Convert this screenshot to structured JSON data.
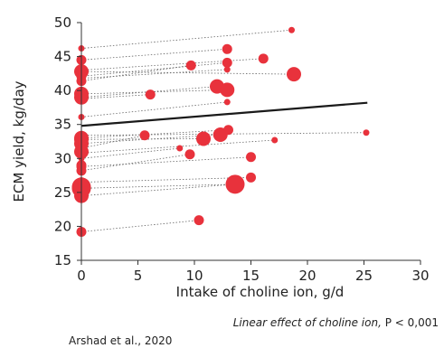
{
  "chart_data": {
    "type": "scatter",
    "xlabel": "Intake of choline ion, g/d",
    "ylabel": "ECM yield, kg/day",
    "xlim": [
      0,
      30
    ],
    "ylim": [
      15,
      50
    ],
    "xticks": [
      0,
      5,
      10,
      15,
      20,
      25,
      30
    ],
    "yticks": [
      15,
      20,
      25,
      30,
      35,
      40,
      45,
      50
    ],
    "grid": false,
    "colors": {
      "point": "#e8323c",
      "trend": "#1a1a1a",
      "connector": "#666666"
    },
    "trend_line": {
      "x": [
        0,
        25.3
      ],
      "y": [
        34.8,
        38.2
      ]
    },
    "pairs": [
      {
        "x0": 0,
        "y0": 46.2,
        "x1": 18.6,
        "y1": 48.9,
        "size": 1
      },
      {
        "x0": 0,
        "y0": 44.5,
        "x1": 12.9,
        "y1": 46.1,
        "size": 2
      },
      {
        "x0": 0,
        "y0": 43.0,
        "x1": 16.1,
        "y1": 44.7,
        "size": 2
      },
      {
        "x0": 0,
        "y0": 42.1,
        "x1": 12.9,
        "y1": 44.1,
        "size": 2
      },
      {
        "x0": 0,
        "y0": 41.4,
        "x1": 9.7,
        "y1": 43.7,
        "size": 2
      },
      {
        "x0": 0,
        "y0": 42.8,
        "x1": 18.8,
        "y1": 42.4,
        "size": 3
      },
      {
        "x0": 0,
        "y0": 41.8,
        "x1": 12.9,
        "y1": 43.1,
        "size": 1
      },
      {
        "x0": 0,
        "y0": 39.0,
        "x1": 12.0,
        "y1": 40.6,
        "size": 3
      },
      {
        "x0": 0,
        "y0": 39.5,
        "x1": 12.9,
        "y1": 40.1,
        "size": 3
      },
      {
        "x0": 0,
        "y0": 38.8,
        "x1": 6.1,
        "y1": 39.4,
        "size": 2
      },
      {
        "x0": 0,
        "y0": 36.1,
        "x1": 12.9,
        "y1": 38.3,
        "size": 1
      },
      {
        "x0": 0,
        "y0": 33.4,
        "x1": 25.2,
        "y1": 33.8,
        "size": 1
      },
      {
        "x0": 0,
        "y0": 32.8,
        "x1": 10.8,
        "y1": 32.9,
        "size": 3
      },
      {
        "x0": 0,
        "y0": 33.0,
        "x1": 13.0,
        "y1": 34.2,
        "size": 2
      },
      {
        "x0": 0,
        "y0": 31.5,
        "x1": 5.6,
        "y1": 33.4,
        "size": 2
      },
      {
        "x0": 0,
        "y0": 32.2,
        "x1": 12.3,
        "y1": 33.5,
        "size": 3
      },
      {
        "x0": 0,
        "y0": 30.8,
        "x1": 17.1,
        "y1": 32.7,
        "size": 1
      },
      {
        "x0": 0,
        "y0": 30.0,
        "x1": 8.7,
        "y1": 31.5,
        "size": 1
      },
      {
        "x0": 0,
        "y0": 28.2,
        "x1": 9.6,
        "y1": 30.6,
        "size": 2
      },
      {
        "x0": 0,
        "y0": 28.8,
        "x1": 15.0,
        "y1": 30.2,
        "size": 2
      },
      {
        "x0": 0,
        "y0": 26.5,
        "x1": 15.0,
        "y1": 27.2,
        "size": 2
      },
      {
        "x0": 0,
        "y0": 25.6,
        "x1": 13.6,
        "y1": 26.2,
        "size": 4
      },
      {
        "x0": 0,
        "y0": 24.5,
        "x1": 13.6,
        "y1": 26.2,
        "size": 3
      },
      {
        "x0": 0,
        "y0": 19.2,
        "x1": 10.4,
        "y1": 20.9,
        "size": 2
      }
    ],
    "extra_points": [
      {
        "x": 0,
        "y": 33.0,
        "size": 3
      },
      {
        "x": 0,
        "y": 31.0,
        "size": 3
      },
      {
        "x": 0,
        "y": 25.8,
        "size": 4
      },
      {
        "x": 0,
        "y": 29.0,
        "size": 2
      }
    ]
  },
  "annotation": {
    "effect_label": "Linear effect of choline ion,",
    "p_value": "P < 0,001"
  },
  "source": "Arshad et al., 2020"
}
